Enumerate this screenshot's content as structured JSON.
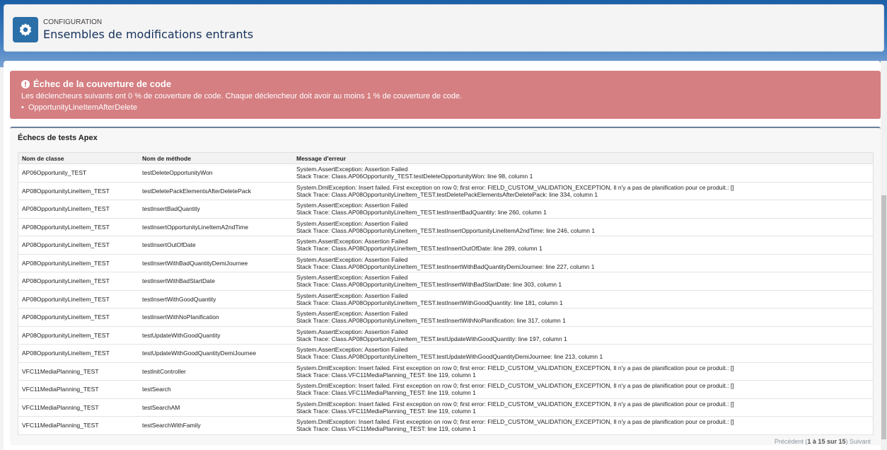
{
  "header": {
    "subtitle": "CONFIGURATION",
    "title": "Ensembles de modifications entrants",
    "icon": "gear-icon",
    "icon_color": "#2a6fa8"
  },
  "alert": {
    "title": "Échec de la couverture de code",
    "message": "Les déclencheurs suivants ont 0 % de couverture de code. Chaque déclencheur doit avoir au moins 1 % de couverture de code.",
    "items": [
      "OpportunityLineItemAfterDelete"
    ],
    "color": "#d57f82"
  },
  "section": {
    "title": "Échecs de tests Apex"
  },
  "table": {
    "columns": [
      "Nom de classe",
      "Nom de méthode",
      "Message d'erreur"
    ],
    "rows": [
      {
        "cls": "AP06Opportunity_TEST",
        "method": "testDeleteOpportunityWon",
        "msg1": "System.AssertException: Assertion Failed",
        "msg2": "Stack Trace: Class.AP06Opportunity_TEST.testDeleteOpportunityWon: line 98, column 1"
      },
      {
        "cls": "AP08OpportunityLineItem_TEST",
        "method": "testDeletePackElementsAfterDeletePack",
        "msg1": "System.DmlException: Insert failed. First exception on row 0; first error: FIELD_CUSTOM_VALIDATION_EXCEPTION, Il n'y a pas de planification pour ce produit.: []",
        "msg2": "Stack Trace: Class.AP08OpportunityLineItem_TEST.testDeletePackElementsAfterDeletePack: line 334, column 1"
      },
      {
        "cls": "AP08OpportunityLineItem_TEST",
        "method": "testInsertBadQuantity",
        "msg1": "System.AssertException: Assertion Failed",
        "msg2": "Stack Trace: Class.AP08OpportunityLineItem_TEST.testInsertBadQuantity: line 260, column 1"
      },
      {
        "cls": "AP08OpportunityLineItem_TEST",
        "method": "testInsertOpportunityLineItemA2ndTime",
        "msg1": "System.AssertException: Assertion Failed",
        "msg2": "Stack Trace: Class.AP08OpportunityLineItem_TEST.testInsertOpportunityLineItemA2ndTime: line 246, column 1"
      },
      {
        "cls": "AP08OpportunityLineItem_TEST",
        "method": "testInsertOutOfDate",
        "msg1": "System.AssertException: Assertion Failed",
        "msg2": "Stack Trace: Class.AP08OpportunityLineItem_TEST.testInsertOutOfDate: line 289, column 1"
      },
      {
        "cls": "AP08OpportunityLineItem_TEST",
        "method": "testInsertWithBadQuantityDemiJournee",
        "msg1": "System.AssertException: Assertion Failed",
        "msg2": "Stack Trace: Class.AP08OpportunityLineItem_TEST.testInsertWithBadQuantityDemiJournee: line 227, column 1"
      },
      {
        "cls": "AP08OpportunityLineItem_TEST",
        "method": "testInsertWithBadStartDate",
        "msg1": "System.AssertException: Assertion Failed",
        "msg2": "Stack Trace: Class.AP08OpportunityLineItem_TEST.testInsertWithBadStartDate: line 303, column 1"
      },
      {
        "cls": "AP08OpportunityLineItem_TEST",
        "method": "testInsertWithGoodQuantity",
        "msg1": "System.AssertException: Assertion Failed",
        "msg2": "Stack Trace: Class.AP08OpportunityLineItem_TEST.testInsertWithGoodQuantity: line 181, column 1"
      },
      {
        "cls": "AP08OpportunityLineItem_TEST",
        "method": "testInsertWithNoPlanification",
        "msg1": "System.AssertException: Assertion Failed",
        "msg2": "Stack Trace: Class.AP08OpportunityLineItem_TEST.testInsertWithNoPlanification: line 317, column 1"
      },
      {
        "cls": "AP08OpportunityLineItem_TEST",
        "method": "testUpdateWithGoodQuantity",
        "msg1": "System.AssertException: Assertion Failed",
        "msg2": "Stack Trace: Class.AP08OpportunityLineItem_TEST.testUpdateWithGoodQuantity: line 197, column 1"
      },
      {
        "cls": "AP08OpportunityLineItem_TEST",
        "method": "testUpdateWithGoodQuantityDemiJournee",
        "msg1": "System.AssertException: Assertion Failed",
        "msg2": "Stack Trace: Class.AP08OpportunityLineItem_TEST.testUpdateWithGoodQuantityDemiJournee: line 213, column 1"
      },
      {
        "cls": "VFC11MediaPlanning_TEST",
        "method": "testInitController",
        "msg1": "System.DmlException: Insert failed. First exception on row 0; first error: FIELD_CUSTOM_VALIDATION_EXCEPTION, Il n'y a pas de planification pour ce produit.: []",
        "msg2": "Stack Trace: Class.VFC11MediaPlanning_TEST: line 119, column 1"
      },
      {
        "cls": "VFC11MediaPlanning_TEST",
        "method": "testSearch",
        "msg1": "System.DmlException: Insert failed. First exception on row 0; first error: FIELD_CUSTOM_VALIDATION_EXCEPTION, Il n'y a pas de planification pour ce produit.: []",
        "msg2": "Stack Trace: Class.VFC11MediaPlanning_TEST: line 119, column 1"
      },
      {
        "cls": "VFC11MediaPlanning_TEST",
        "method": "testSearchAM",
        "msg1": "System.DmlException: Insert failed. First exception on row 0; first error: FIELD_CUSTOM_VALIDATION_EXCEPTION, Il n'y a pas de planification pour ce produit.: []",
        "msg2": "Stack Trace: Class.VFC11MediaPlanning_TEST: line 119, column 1"
      },
      {
        "cls": "VFC11MediaPlanning_TEST",
        "method": "testSearchWithFamily",
        "msg1": "System.DmlException: Insert failed. First exception on row 0; first error: FIELD_CUSTOM_VALIDATION_EXCEPTION, Il n'y a pas de planification pour ce produit.: []",
        "msg2": "Stack Trace: Class.VFC11MediaPlanning_TEST: line 119, column 1"
      }
    ]
  },
  "pager": {
    "previous": "Précédent",
    "range": "1 à 15 sur 15",
    "next": "Suivant"
  }
}
